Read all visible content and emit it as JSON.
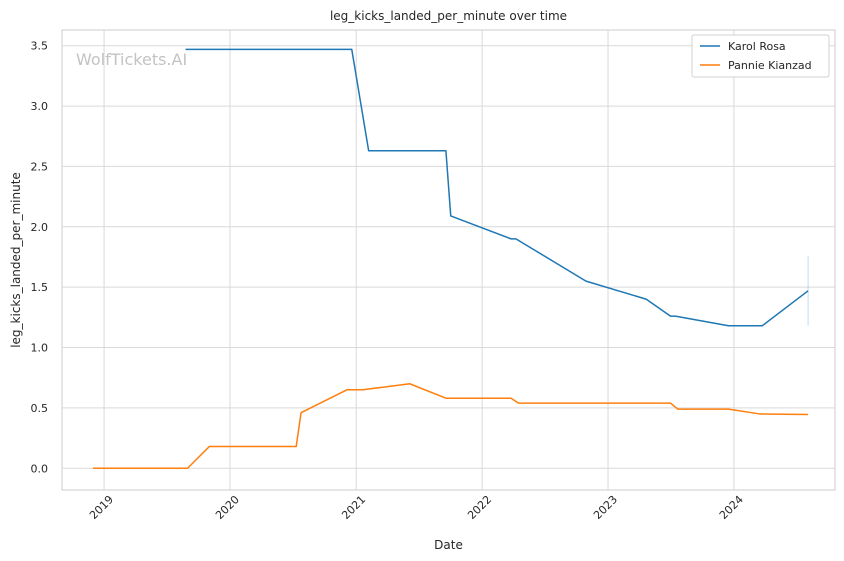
{
  "chart_data": {
    "type": "line",
    "title": "leg_kicks_landed_per_minute over time",
    "xlabel": "Date",
    "ylabel": "leg_kicks_landed_per_minute",
    "watermark": "WolfTickets.AI",
    "x_ticks": [
      "2019-01-01",
      "2020-01-01",
      "2021-01-01",
      "2022-01-01",
      "2023-01-01",
      "2024-01-01"
    ],
    "x_tick_labels": [
      "2019",
      "2020",
      "2021",
      "2022",
      "2023",
      "2024"
    ],
    "xlim": [
      "2018-09-01",
      "2024-10-20"
    ],
    "y_ticks": [
      0.0,
      0.5,
      1.0,
      1.5,
      2.0,
      2.5,
      3.0,
      3.5
    ],
    "y_tick_labels": [
      "0.0",
      "0.5",
      "1.0",
      "1.5",
      "2.0",
      "2.5",
      "3.0",
      "3.5"
    ],
    "ylim": [
      -0.18,
      3.63
    ],
    "grid": true,
    "legend_position": "top-right",
    "series": [
      {
        "name": "Karol Rosa",
        "color": "#1f77b4",
        "points": [
          {
            "x": "2019-08-25",
            "y": 3.47
          },
          {
            "x": "2020-12-19",
            "y": 3.47
          },
          {
            "x": "2021-02-06",
            "y": 2.63
          },
          {
            "x": "2021-09-18",
            "y": 2.63
          },
          {
            "x": "2021-10-02",
            "y": 2.09
          },
          {
            "x": "2022-03-26",
            "y": 1.9
          },
          {
            "x": "2022-04-09",
            "y": 1.9
          },
          {
            "x": "2022-10-29",
            "y": 1.55
          },
          {
            "x": "2023-04-22",
            "y": 1.4
          },
          {
            "x": "2023-07-01",
            "y": 1.26
          },
          {
            "x": "2023-07-15",
            "y": 1.26
          },
          {
            "x": "2023-12-16",
            "y": 1.18
          },
          {
            "x": "2024-03-23",
            "y": 1.18
          },
          {
            "x": "2024-08-03",
            "y": 1.47
          }
        ],
        "error_bar": {
          "x": "2024-08-03",
          "low": 1.18,
          "high": 1.76
        }
      },
      {
        "name": "Pannie Kianzad",
        "color": "#ff7f0e",
        "points": [
          {
            "x": "2018-11-30",
            "y": 0.0
          },
          {
            "x": "2019-08-31",
            "y": 0.0
          },
          {
            "x": "2019-11-02",
            "y": 0.18
          },
          {
            "x": "2020-07-11",
            "y": 0.18
          },
          {
            "x": "2020-07-25",
            "y": 0.46
          },
          {
            "x": "2020-12-05",
            "y": 0.65
          },
          {
            "x": "2021-01-20",
            "y": 0.65
          },
          {
            "x": "2021-06-05",
            "y": 0.7
          },
          {
            "x": "2021-09-18",
            "y": 0.58
          },
          {
            "x": "2022-03-26",
            "y": 0.58
          },
          {
            "x": "2022-04-16",
            "y": 0.54
          },
          {
            "x": "2023-07-01",
            "y": 0.54
          },
          {
            "x": "2023-07-22",
            "y": 0.49
          },
          {
            "x": "2023-12-16",
            "y": 0.49
          },
          {
            "x": "2024-03-16",
            "y": 0.45
          },
          {
            "x": "2024-08-03",
            "y": 0.445
          }
        ]
      }
    ]
  }
}
